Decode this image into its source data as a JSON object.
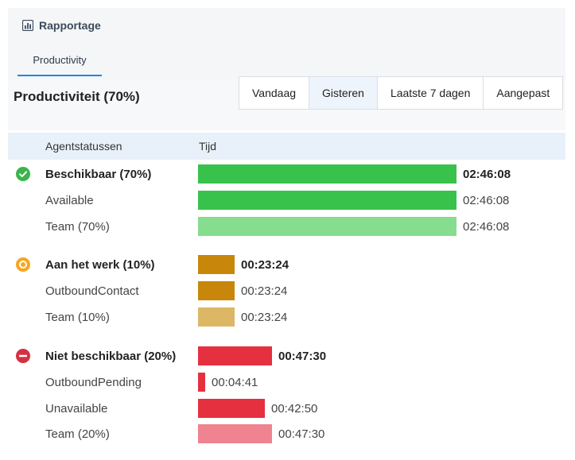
{
  "app": {
    "title": "Rapportage",
    "icon": "bar-chart-icon"
  },
  "tabs": [
    {
      "label": "Productivity",
      "active": true
    }
  ],
  "section": {
    "title": "Productiviteit (70%)"
  },
  "filters": [
    {
      "label": "Vandaag",
      "active": false
    },
    {
      "label": "Gisteren",
      "active": true
    },
    {
      "label": "Laatste 7 dagen",
      "active": false
    },
    {
      "label": "Aangepast",
      "active": false
    }
  ],
  "table": {
    "headers": {
      "status": "Agentstatussen",
      "time": "Tijd"
    },
    "groups": [
      {
        "icon": "check-circle-icon",
        "icon_color": "#3bb54a",
        "main": {
          "label": "Beschikbaar (70%)",
          "time": "02:46:08",
          "fraction": 1.0,
          "color": "#38c24b"
        },
        "rows": [
          {
            "label": "Available",
            "time": "02:46:08",
            "fraction": 1.0,
            "color": "#38c24b"
          },
          {
            "label": "Team (70%)",
            "time": "02:46:08",
            "fraction": 1.0,
            "color": "#86dc8f"
          }
        ]
      },
      {
        "icon": "ring-circle-icon",
        "icon_color": "#f5a623",
        "main": {
          "label": "Aan het werk (10%)",
          "time": "00:23:24",
          "fraction": 0.141,
          "color": "#c8870a"
        },
        "rows": [
          {
            "label": "OutboundContact",
            "time": "00:23:24",
            "fraction": 0.141,
            "color": "#c8870a"
          },
          {
            "label": "Team (10%)",
            "time": "00:23:24",
            "fraction": 0.141,
            "color": "#dcb766"
          }
        ]
      },
      {
        "icon": "minus-circle-icon",
        "icon_color": "#d63040",
        "main": {
          "label": "Niet beschikbaar (20%)",
          "time": "00:47:30",
          "fraction": 0.286,
          "color": "#e5303f"
        },
        "rows": [
          {
            "label": "OutboundPending",
            "time": "00:04:41",
            "fraction": 0.028,
            "color": "#e5303f"
          },
          {
            "label": "Unavailable",
            "time": "00:42:50",
            "fraction": 0.258,
            "color": "#e5303f"
          },
          {
            "label": "Team (20%)",
            "time": "00:47:30",
            "fraction": 0.286,
            "color": "#ef8390"
          }
        ]
      }
    ]
  }
}
